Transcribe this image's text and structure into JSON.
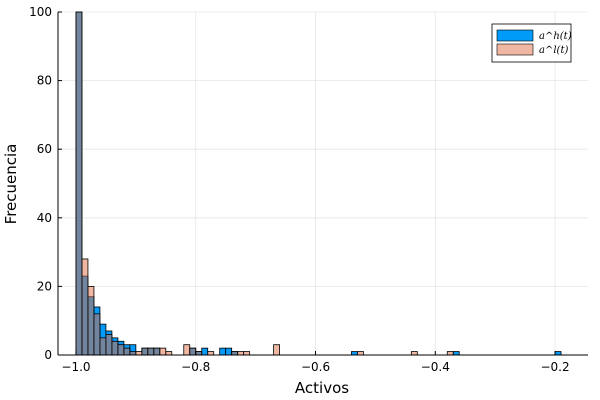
{
  "chart_data": {
    "type": "bar",
    "subtype": "overlaid-histogram",
    "title": "",
    "xlabel": "Activos",
    "ylabel": "Frecuencia",
    "xlim": [
      -1.03,
      -0.145
    ],
    "ylim": [
      0,
      100
    ],
    "x_ticks": [
      -1.0,
      -0.8,
      -0.6,
      -0.4,
      -0.2
    ],
    "x_tick_labels": [
      "−1.0",
      "−0.8",
      "−0.6",
      "−0.4",
      "−0.2"
    ],
    "y_ticks": [
      0,
      20,
      40,
      60,
      80,
      100
    ],
    "y_tick_labels": [
      "0",
      "20",
      "40",
      "60",
      "80",
      "100"
    ],
    "grid": true,
    "legend_position": "top-right",
    "bin_width": 0.01,
    "series": [
      {
        "name": "a^h(t)",
        "color": "#009af9",
        "bins": [
          {
            "x0": -1.0,
            "count": 100
          },
          {
            "x0": -0.99,
            "count": 23
          },
          {
            "x0": -0.98,
            "count": 17
          },
          {
            "x0": -0.97,
            "count": 14
          },
          {
            "x0": -0.96,
            "count": 9
          },
          {
            "x0": -0.95,
            "count": 7
          },
          {
            "x0": -0.94,
            "count": 5
          },
          {
            "x0": -0.93,
            "count": 4
          },
          {
            "x0": -0.92,
            "count": 3
          },
          {
            "x0": -0.91,
            "count": 3
          },
          {
            "x0": -0.89,
            "count": 2
          },
          {
            "x0": -0.88,
            "count": 2
          },
          {
            "x0": -0.87,
            "count": 2
          },
          {
            "x0": -0.81,
            "count": 2
          },
          {
            "x0": -0.8,
            "count": 1
          },
          {
            "x0": -0.79,
            "count": 2
          },
          {
            "x0": -0.76,
            "count": 2
          },
          {
            "x0": -0.75,
            "count": 2
          },
          {
            "x0": -0.74,
            "count": 1
          },
          {
            "x0": -0.54,
            "count": 1
          },
          {
            "x0": -0.37,
            "count": 1
          },
          {
            "x0": -0.2,
            "count": 1
          }
        ]
      },
      {
        "name": "a^l(t)",
        "color": "#e26f46",
        "bins": [
          {
            "x0": -1.0,
            "count": 100
          },
          {
            "x0": -0.99,
            "count": 28
          },
          {
            "x0": -0.98,
            "count": 20
          },
          {
            "x0": -0.97,
            "count": 12
          },
          {
            "x0": -0.96,
            "count": 5
          },
          {
            "x0": -0.95,
            "count": 6
          },
          {
            "x0": -0.94,
            "count": 4
          },
          {
            "x0": -0.93,
            "count": 3
          },
          {
            "x0": -0.92,
            "count": 2
          },
          {
            "x0": -0.91,
            "count": 1
          },
          {
            "x0": -0.9,
            "count": 1
          },
          {
            "x0": -0.89,
            "count": 2
          },
          {
            "x0": -0.88,
            "count": 2
          },
          {
            "x0": -0.87,
            "count": 2
          },
          {
            "x0": -0.86,
            "count": 2
          },
          {
            "x0": -0.85,
            "count": 1
          },
          {
            "x0": -0.82,
            "count": 3
          },
          {
            "x0": -0.81,
            "count": 2
          },
          {
            "x0": -0.8,
            "count": 1
          },
          {
            "x0": -0.78,
            "count": 1
          },
          {
            "x0": -0.74,
            "count": 1
          },
          {
            "x0": -0.73,
            "count": 1
          },
          {
            "x0": -0.72,
            "count": 1
          },
          {
            "x0": -0.67,
            "count": 3
          },
          {
            "x0": -0.53,
            "count": 1
          },
          {
            "x0": -0.44,
            "count": 1
          },
          {
            "x0": -0.38,
            "count": 1
          }
        ]
      }
    ],
    "overlap_color": "#6c7d95"
  }
}
